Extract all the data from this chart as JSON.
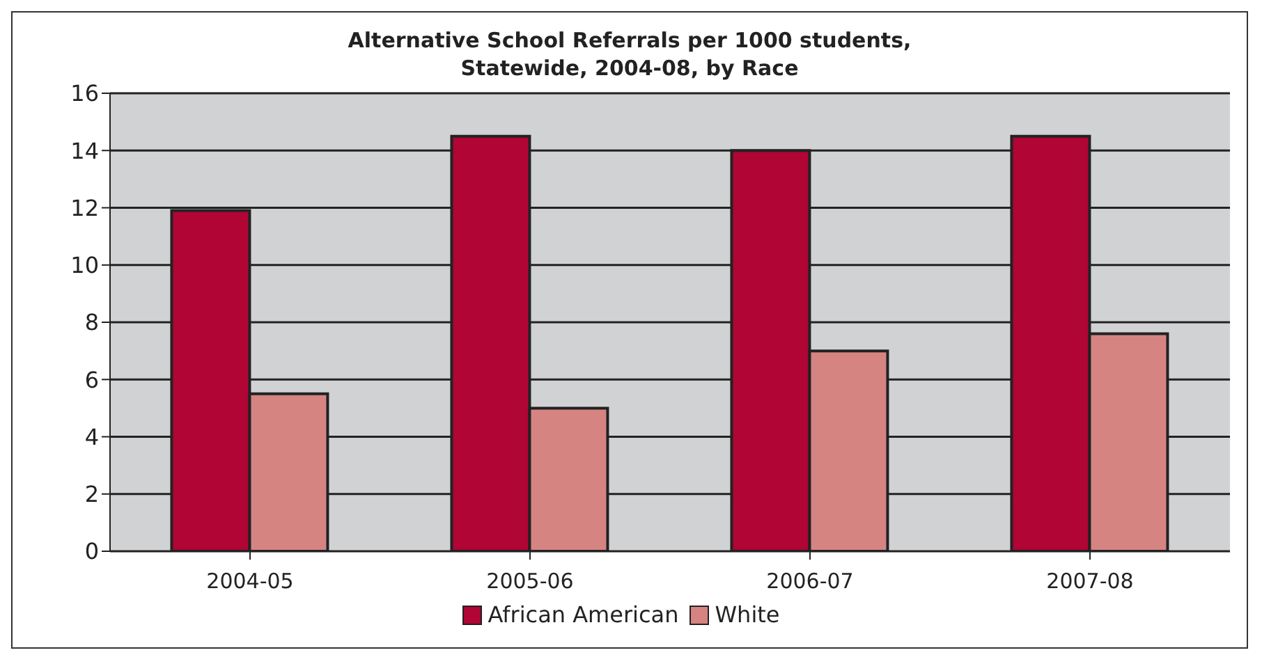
{
  "chart_data": {
    "type": "bar",
    "title": "Alternative School Referrals per 1000 students,\nStatewide, 2004-08, by Race",
    "categories": [
      "2004-05",
      "2005-06",
      "2006-07",
      "2007-08"
    ],
    "series": [
      {
        "name": "African American",
        "color": "#b00535",
        "values": [
          11.9,
          14.5,
          14.0,
          14.5
        ]
      },
      {
        "name": "White",
        "color": "#d58482",
        "values": [
          5.5,
          5.0,
          7.0,
          7.6
        ]
      }
    ],
    "ylim": [
      0,
      16
    ],
    "yticks": [
      0,
      2,
      4,
      6,
      8,
      10,
      12,
      14,
      16
    ],
    "grid": "y",
    "legend": "bottom"
  }
}
